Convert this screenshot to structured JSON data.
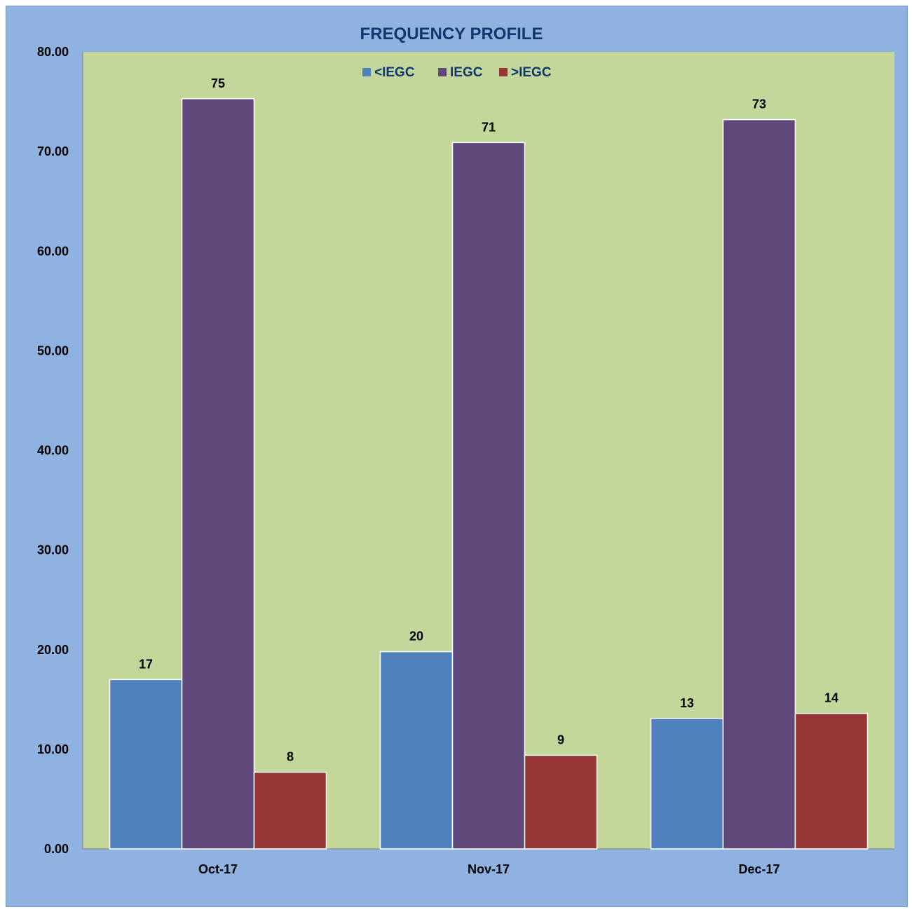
{
  "chart_data": {
    "type": "bar",
    "title": "FREQUENCY PROFILE",
    "categories": [
      "Oct-17",
      "Nov-17",
      "Dec-17"
    ],
    "series": [
      {
        "name": "<IEGC",
        "values": [
          17.0,
          19.8,
          13.1
        ],
        "labels": [
          "17",
          "20",
          "13"
        ],
        "color": "#4f81bd"
      },
      {
        "name": "IEGC",
        "values": [
          75.3,
          70.9,
          73.2
        ],
        "labels": [
          "75",
          "71",
          "73"
        ],
        "color": "#604a7b"
      },
      {
        "name": ">IEGC",
        "values": [
          7.7,
          9.4,
          13.6
        ],
        "labels": [
          "8",
          "9",
          "14"
        ],
        "color": "#953735"
      }
    ],
    "ylim": [
      0,
      80
    ],
    "yticks": [
      "0.00",
      "10.00",
      "20.00",
      "30.00",
      "40.00",
      "50.00",
      "60.00",
      "70.00",
      "80.00"
    ],
    "xlabel": "",
    "ylabel": "",
    "legend_position": "top-center",
    "grid": false,
    "colors": {
      "chart_background": "#8fb2e0",
      "plot_background": "#c4d79b",
      "title": "#10386e"
    }
  }
}
